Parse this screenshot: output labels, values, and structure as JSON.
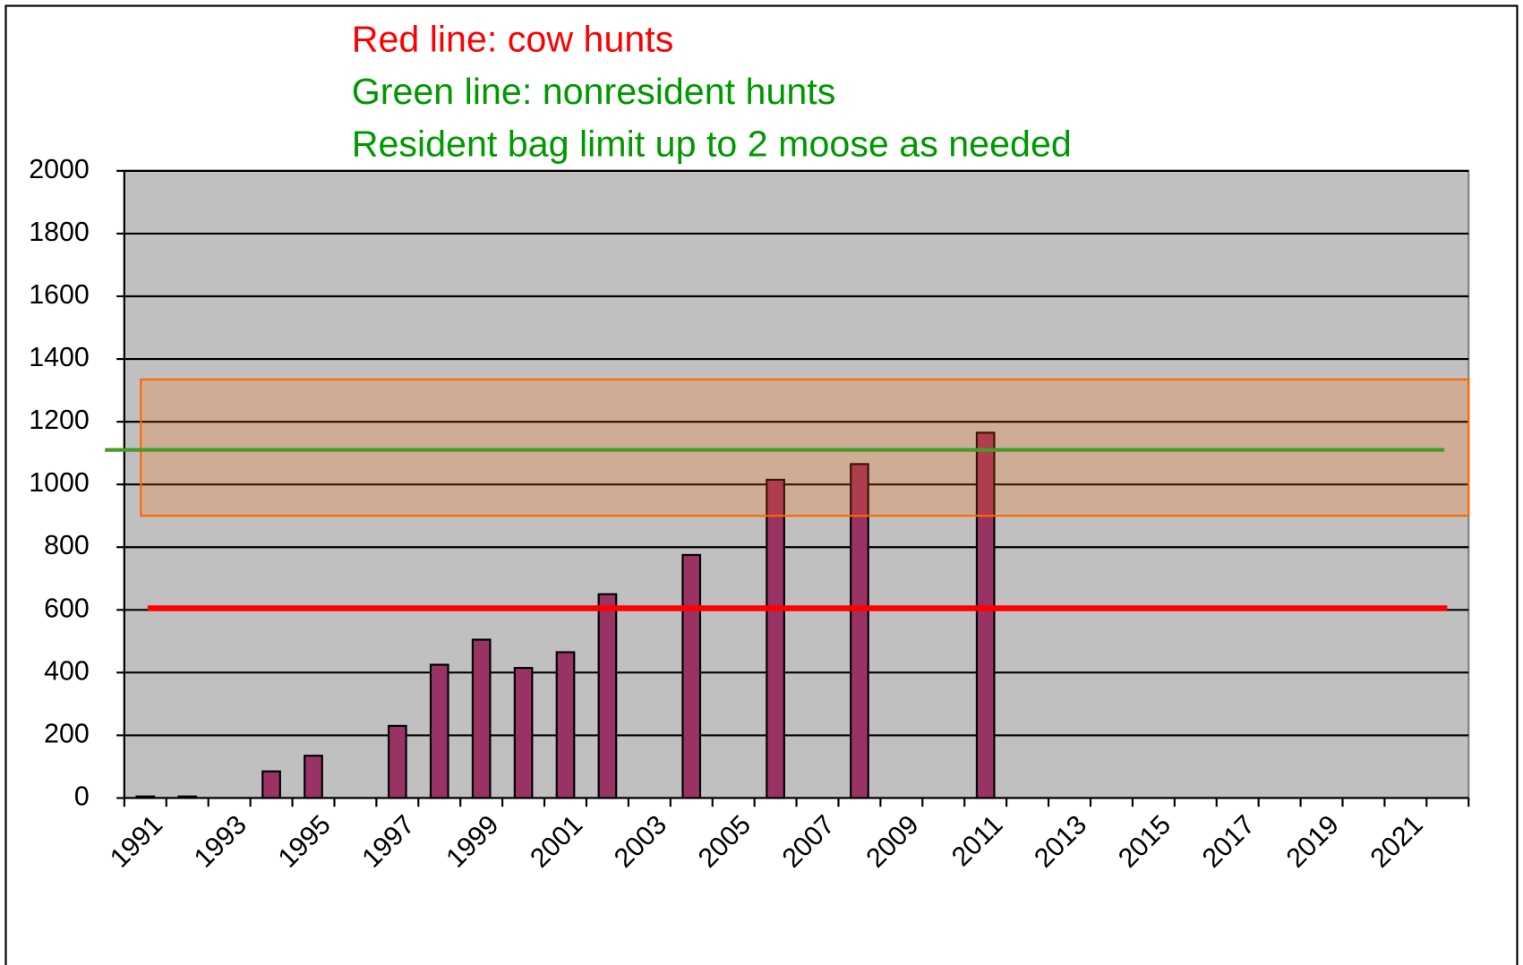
{
  "chart_data": {
    "type": "bar",
    "annotations": [
      {
        "text": "Red line:  cow hunts",
        "color": "#ff0000"
      },
      {
        "text": "Green line:  nonresident hunts",
        "color": "#009900"
      },
      {
        "text": "Resident bag limit up to 2 moose as needed",
        "color": "#009900"
      }
    ],
    "categories": [
      "1991",
      null,
      "1993",
      null,
      "1995",
      null,
      "1997",
      null,
      "1999",
      null,
      "2001",
      null,
      "2003",
      null,
      "2005",
      null,
      "2007",
      null,
      "2009",
      null,
      "2011",
      null,
      "2013",
      null,
      "2015",
      null,
      "2017",
      null,
      "2019",
      null,
      "2021",
      null
    ],
    "values": [
      5,
      5,
      null,
      85,
      135,
      null,
      230,
      425,
      505,
      415,
      465,
      650,
      null,
      775,
      null,
      1015,
      null,
      1065,
      null,
      null,
      1165,
      null,
      null,
      null,
      null,
      null,
      null,
      null,
      null,
      null,
      null,
      null
    ],
    "color": "#993366",
    "ylim": [
      0,
      2000
    ],
    "yticks": [
      0,
      200,
      400,
      600,
      800,
      1000,
      1200,
      1400,
      1600,
      1800,
      2000
    ],
    "grid": true,
    "reference_lines": [
      {
        "value": 605,
        "color": "#ff0000"
      },
      {
        "value": 1110,
        "color": "#4a9a2a"
      }
    ],
    "highlight_band": {
      "from": 900,
      "to": 1335,
      "color": "#ff6600"
    }
  }
}
